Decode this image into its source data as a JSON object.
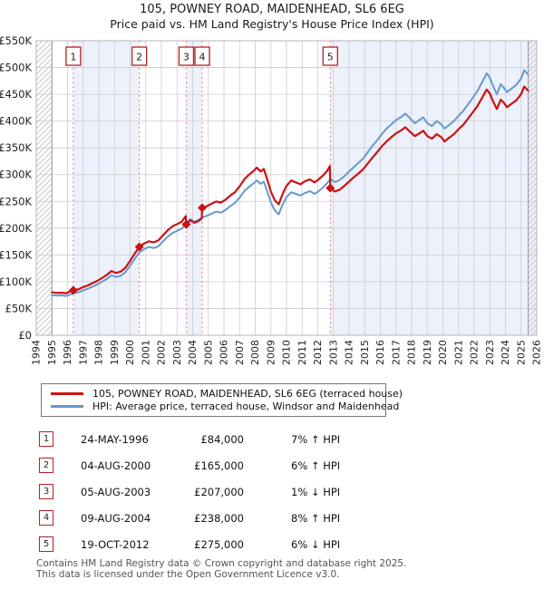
{
  "title": {
    "line1": "105, POWNEY ROAD, MAIDENHEAD, SL6 6EG",
    "line2": "Price paid vs. HM Land Registry's House Price Index (HPI)"
  },
  "chart_data": {
    "type": "line",
    "x_axis": {
      "range": [
        1994,
        2026
      ],
      "tick_years": [
        1994,
        1995,
        1996,
        1997,
        1998,
        1999,
        2000,
        2001,
        2002,
        2003,
        2004,
        2005,
        2006,
        2007,
        2008,
        2009,
        2010,
        2011,
        2012,
        2013,
        2014,
        2015,
        2016,
        2017,
        2018,
        2019,
        2020,
        2021,
        2022,
        2023,
        2024,
        2025,
        2026
      ]
    },
    "y_axis": {
      "range_thousands": [
        0,
        550
      ],
      "step_thousands": 50,
      "tick_labels": [
        "£0",
        "£50K",
        "£100K",
        "£150K",
        "£200K",
        "£250K",
        "£300K",
        "£350K",
        "£400K",
        "£450K",
        "£500K",
        "£550K"
      ]
    },
    "colors": {
      "property": "#cc1111",
      "hpi": "#6699cc",
      "band": "#ecf1fb",
      "dashed": "#f47c7c",
      "grid": "#cccccc",
      "frame": "#b5b5b5",
      "hatch": "#c8c8c8",
      "edge": "#999999",
      "marker_box_border": "#b22222"
    },
    "data_start_year": 1995.0,
    "data_end_year": 2025.45,
    "ownership_bands": [
      [
        1996.37,
        2000.59
      ],
      [
        2003.59,
        2004.61
      ],
      [
        2012.8,
        2026
      ]
    ],
    "hatch_regions": [
      [
        1994,
        1995.0
      ],
      [
        2025.45,
        2026
      ]
    ],
    "markers": [
      {
        "label": "1",
        "year": 1996.37,
        "value_k": 84
      },
      {
        "label": "2",
        "year": 2000.59,
        "value_k": 165
      },
      {
        "label": "3",
        "year": 2003.59,
        "value_k": 207
      },
      {
        "label": "4",
        "year": 2004.61,
        "value_k": 238
      },
      {
        "label": "5",
        "year": 2012.8,
        "value_k": 275
      }
    ],
    "series": [
      {
        "name": "HPI: Average price, terraced house, Windsor and Maidenhead",
        "color": "#6699cc",
        "points": [
          [
            1995.0,
            75
          ],
          [
            1995.3,
            74
          ],
          [
            1995.6,
            74.5
          ],
          [
            1995.9,
            73.5
          ],
          [
            1996.1,
            75.5
          ],
          [
            1996.37,
            78.5
          ],
          [
            1996.7,
            80.5
          ],
          [
            1997.0,
            84
          ],
          [
            1997.3,
            87
          ],
          [
            1997.6,
            91
          ],
          [
            1997.9,
            95
          ],
          [
            1998.2,
            100
          ],
          [
            1998.5,
            105
          ],
          [
            1998.8,
            112
          ],
          [
            1999.1,
            109
          ],
          [
            1999.4,
            111
          ],
          [
            1999.7,
            118
          ],
          [
            2000.0,
            130
          ],
          [
            2000.3,
            143
          ],
          [
            2000.59,
            155
          ],
          [
            2000.9,
            161
          ],
          [
            2001.2,
            165
          ],
          [
            2001.5,
            163
          ],
          [
            2001.8,
            166
          ],
          [
            2002.1,
            175
          ],
          [
            2002.4,
            184
          ],
          [
            2002.7,
            191
          ],
          [
            2003.0,
            195
          ],
          [
            2003.3,
            199
          ],
          [
            2003.59,
            209
          ],
          [
            2003.85,
            217
          ],
          [
            2004.1,
            212
          ],
          [
            2004.35,
            215
          ],
          [
            2004.61,
            220
          ],
          [
            2004.9,
            223
          ],
          [
            2005.2,
            227
          ],
          [
            2005.5,
            231
          ],
          [
            2005.8,
            229
          ],
          [
            2006.1,
            234
          ],
          [
            2006.4,
            241
          ],
          [
            2006.7,
            247
          ],
          [
            2007.0,
            257
          ],
          [
            2007.3,
            269
          ],
          [
            2007.6,
            277
          ],
          [
            2007.9,
            284
          ],
          [
            2008.1,
            289
          ],
          [
            2008.35,
            283
          ],
          [
            2008.55,
            287
          ],
          [
            2008.8,
            266
          ],
          [
            2009.0,
            248
          ],
          [
            2009.25,
            233
          ],
          [
            2009.5,
            226
          ],
          [
            2009.75,
            244
          ],
          [
            2010.0,
            258
          ],
          [
            2010.3,
            267
          ],
          [
            2010.6,
            264
          ],
          [
            2010.9,
            261
          ],
          [
            2011.2,
            266
          ],
          [
            2011.5,
            269
          ],
          [
            2011.8,
            264
          ],
          [
            2012.0,
            268
          ],
          [
            2012.3,
            275
          ],
          [
            2012.6,
            284
          ],
          [
            2012.8,
            292
          ],
          [
            2013.1,
            286
          ],
          [
            2013.4,
            290
          ],
          [
            2013.7,
            297
          ],
          [
            2014.0,
            306
          ],
          [
            2014.3,
            314
          ],
          [
            2014.6,
            322
          ],
          [
            2014.9,
            330
          ],
          [
            2015.2,
            342
          ],
          [
            2015.5,
            354
          ],
          [
            2015.8,
            364
          ],
          [
            2016.1,
            376
          ],
          [
            2016.4,
            386
          ],
          [
            2016.7,
            394
          ],
          [
            2017.0,
            402
          ],
          [
            2017.3,
            407
          ],
          [
            2017.6,
            414
          ],
          [
            2017.9,
            405
          ],
          [
            2018.2,
            396
          ],
          [
            2018.5,
            402
          ],
          [
            2018.75,
            407
          ],
          [
            2019.0,
            396
          ],
          [
            2019.3,
            391
          ],
          [
            2019.6,
            400
          ],
          [
            2019.9,
            394
          ],
          [
            2020.1,
            386
          ],
          [
            2020.4,
            393
          ],
          [
            2020.7,
            400
          ],
          [
            2021.0,
            410
          ],
          [
            2021.3,
            419
          ],
          [
            2021.6,
            431
          ],
          [
            2021.9,
            443
          ],
          [
            2022.2,
            456
          ],
          [
            2022.5,
            472
          ],
          [
            2022.8,
            489
          ],
          [
            2023.0,
            481
          ],
          [
            2023.2,
            466
          ],
          [
            2023.45,
            450
          ],
          [
            2023.7,
            469
          ],
          [
            2023.9,
            462
          ],
          [
            2024.1,
            454
          ],
          [
            2024.4,
            461
          ],
          [
            2024.7,
            468
          ],
          [
            2025.0,
            480
          ],
          [
            2025.2,
            495
          ],
          [
            2025.45,
            487
          ]
        ]
      },
      {
        "name": "105, POWNEY ROAD, MAIDENHEAD, SL6 6EG (terraced house)",
        "color": "#cc1111",
        "points": [
          [
            1995.0,
            80.5
          ],
          [
            1995.3,
            79
          ],
          [
            1995.6,
            79.5
          ],
          [
            1995.9,
            78.5
          ],
          [
            1996.1,
            81
          ],
          [
            1996.37,
            84
          ],
          [
            1996.7,
            86
          ],
          [
            1997.0,
            90
          ],
          [
            1997.3,
            93
          ],
          [
            1997.6,
            97.5
          ],
          [
            1997.9,
            101.5
          ],
          [
            1998.2,
            107
          ],
          [
            1998.5,
            112.5
          ],
          [
            1998.8,
            120
          ],
          [
            1999.1,
            116.5
          ],
          [
            1999.4,
            119
          ],
          [
            1999.7,
            126
          ],
          [
            2000.0,
            139
          ],
          [
            2000.3,
            153
          ],
          [
            2000.59,
            165
          ],
          [
            2000.9,
            171.5
          ],
          [
            2001.2,
            175.5
          ],
          [
            2001.5,
            173.5
          ],
          [
            2001.8,
            177
          ],
          [
            2002.1,
            186.5
          ],
          [
            2002.4,
            196
          ],
          [
            2002.7,
            203.5
          ],
          [
            2003.0,
            207.5
          ],
          [
            2003.3,
            212
          ],
          [
            2003.56,
            222.5
          ],
          [
            2003.59,
            207
          ],
          [
            2003.85,
            215
          ],
          [
            2004.1,
            210
          ],
          [
            2004.35,
            213
          ],
          [
            2004.58,
            218
          ],
          [
            2004.61,
            238
          ],
          [
            2004.9,
            241
          ],
          [
            2005.2,
            245.5
          ],
          [
            2005.5,
            250
          ],
          [
            2005.8,
            248
          ],
          [
            2006.1,
            253
          ],
          [
            2006.4,
            261
          ],
          [
            2006.7,
            267
          ],
          [
            2007.0,
            278
          ],
          [
            2007.3,
            291
          ],
          [
            2007.6,
            300
          ],
          [
            2007.9,
            307
          ],
          [
            2008.1,
            313
          ],
          [
            2008.35,
            306
          ],
          [
            2008.55,
            310.5
          ],
          [
            2008.8,
            288
          ],
          [
            2009.0,
            268
          ],
          [
            2009.25,
            252
          ],
          [
            2009.5,
            244.5
          ],
          [
            2009.75,
            264
          ],
          [
            2010.0,
            279
          ],
          [
            2010.3,
            289
          ],
          [
            2010.6,
            285.5
          ],
          [
            2010.9,
            282
          ],
          [
            2011.2,
            288
          ],
          [
            2011.5,
            291
          ],
          [
            2011.8,
            285.5
          ],
          [
            2012.0,
            290
          ],
          [
            2012.3,
            297.5
          ],
          [
            2012.6,
            307
          ],
          [
            2012.77,
            316
          ],
          [
            2012.8,
            275
          ],
          [
            2013.1,
            268.5
          ],
          [
            2013.4,
            272
          ],
          [
            2013.7,
            279
          ],
          [
            2014.0,
            287
          ],
          [
            2014.3,
            295
          ],
          [
            2014.6,
            302
          ],
          [
            2014.9,
            310
          ],
          [
            2015.2,
            321
          ],
          [
            2015.5,
            332
          ],
          [
            2015.8,
            342
          ],
          [
            2016.1,
            353
          ],
          [
            2016.4,
            362
          ],
          [
            2016.7,
            370
          ],
          [
            2017.0,
            377
          ],
          [
            2017.3,
            382
          ],
          [
            2017.6,
            388.5
          ],
          [
            2017.9,
            380
          ],
          [
            2018.2,
            372
          ],
          [
            2018.5,
            377
          ],
          [
            2018.75,
            382
          ],
          [
            2019.0,
            372
          ],
          [
            2019.3,
            367
          ],
          [
            2019.6,
            375.5
          ],
          [
            2019.9,
            370
          ],
          [
            2020.1,
            362
          ],
          [
            2020.4,
            369
          ],
          [
            2020.7,
            375.5
          ],
          [
            2021.0,
            385
          ],
          [
            2021.3,
            393
          ],
          [
            2021.6,
            404.5
          ],
          [
            2021.9,
            416
          ],
          [
            2022.2,
            428
          ],
          [
            2022.5,
            443
          ],
          [
            2022.8,
            459
          ],
          [
            2023.0,
            451.5
          ],
          [
            2023.2,
            437
          ],
          [
            2023.45,
            422.5
          ],
          [
            2023.7,
            440
          ],
          [
            2023.9,
            434
          ],
          [
            2024.1,
            426
          ],
          [
            2024.4,
            432.5
          ],
          [
            2024.7,
            439
          ],
          [
            2025.0,
            450.5
          ],
          [
            2025.2,
            464.5
          ],
          [
            2025.45,
            457
          ]
        ]
      }
    ]
  },
  "legend": {
    "items": [
      {
        "label": "105, POWNEY ROAD, MAIDENHEAD, SL6 6EG (terraced house)",
        "color": "#cc1111"
      },
      {
        "label": "HPI: Average price, terraced house, Windsor and Maidenhead",
        "color": "#6699cc"
      }
    ]
  },
  "transactions": [
    {
      "num": "1",
      "date": "24-MAY-1996",
      "price": "£84,000",
      "change": "7% ↑ HPI"
    },
    {
      "num": "2",
      "date": "04-AUG-2000",
      "price": "£165,000",
      "change": "6% ↑ HPI"
    },
    {
      "num": "3",
      "date": "05-AUG-2003",
      "price": "£207,000",
      "change": "1% ↓ HPI"
    },
    {
      "num": "4",
      "date": "09-AUG-2004",
      "price": "£238,000",
      "change": "8% ↑ HPI"
    },
    {
      "num": "5",
      "date": "19-OCT-2012",
      "price": "£275,000",
      "change": "6% ↓ HPI"
    }
  ],
  "footer": {
    "line1": "Contains HM Land Registry data © Crown copyright and database right 2025.",
    "line2": "This data is licensed under the Open Government Licence v3.0."
  }
}
